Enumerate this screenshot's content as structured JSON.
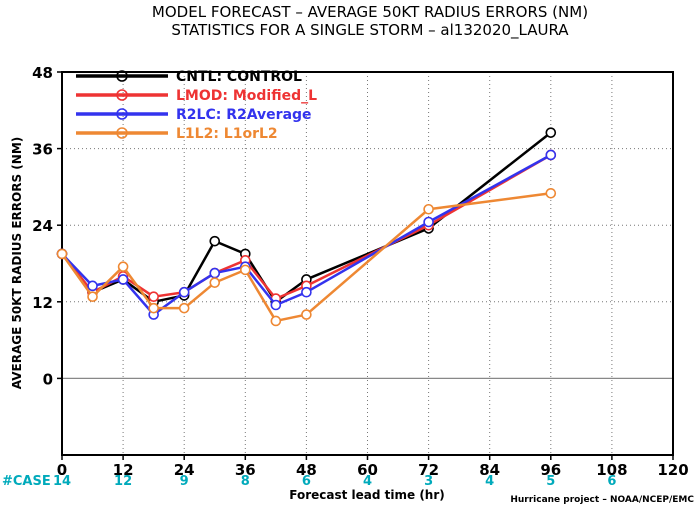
{
  "title_line1": "MODEL FORECAST – AVERAGE 50KT RADIUS ERRORS (NM)",
  "title_line2": "STATISTICS FOR A SINGLE STORM – al132020_LAURA",
  "credit": "Hurricane project – NOAA/NCEP/EMC",
  "case_label": "#CASE",
  "case_color": "#00aabb",
  "chart_data": {
    "type": "line",
    "xlabel": "Forecast lead time (hr)",
    "ylabel": "AVERAGE 50KT RADIUS ERRORS (NM)",
    "xlim": [
      0,
      120
    ],
    "ylim": [
      -12,
      48
    ],
    "x_ticks": [
      0,
      12,
      24,
      36,
      48,
      60,
      72,
      84,
      96,
      108,
      120
    ],
    "y_ticks": [
      0,
      12,
      24,
      36,
      48
    ],
    "case_counts": [
      {
        "x": 0,
        "n": "14"
      },
      {
        "x": 12,
        "n": "12"
      },
      {
        "x": 24,
        "n": "9"
      },
      {
        "x": 36,
        "n": "8"
      },
      {
        "x": 48,
        "n": "6"
      },
      {
        "x": 60,
        "n": "4"
      },
      {
        "x": 72,
        "n": "3"
      },
      {
        "x": 84,
        "n": "4"
      },
      {
        "x": 96,
        "n": "5"
      },
      {
        "x": 108,
        "n": "6"
      }
    ],
    "zero_line": true,
    "legend_position": "top-left",
    "series": [
      {
        "name": "CNTL: CONTROL",
        "color": "#000000",
        "x": [
          0,
          6,
          12,
          18,
          24,
          30,
          36,
          42,
          48,
          72,
          96
        ],
        "y": [
          19.5,
          13.5,
          15.5,
          12.0,
          13.0,
          21.5,
          19.5,
          12.0,
          15.5,
          23.5,
          38.5
        ]
      },
      {
        "name": "LMOD: Modified_L",
        "color": "#ee3333",
        "x": [
          0,
          6,
          12,
          18,
          24,
          30,
          36,
          42,
          48,
          72,
          96
        ],
        "y": [
          19.5,
          13.5,
          16.0,
          12.8,
          13.5,
          16.5,
          18.5,
          12.5,
          14.5,
          24.0,
          35.0
        ]
      },
      {
        "name": "R2LC: R2Average",
        "color": "#3333ee",
        "x": [
          0,
          6,
          12,
          18,
          24,
          30,
          36,
          42,
          48,
          72,
          96
        ],
        "y": [
          19.5,
          14.5,
          15.5,
          10.0,
          13.5,
          16.5,
          17.5,
          11.5,
          13.5,
          24.5,
          35.0
        ]
      },
      {
        "name": "L1L2: L1orL2",
        "color": "#ee8833",
        "x": [
          0,
          6,
          12,
          18,
          24,
          30,
          36,
          42,
          48,
          72,
          96
        ],
        "y": [
          19.5,
          12.8,
          17.5,
          11.0,
          11.0,
          15.0,
          17.0,
          9.0,
          10.0,
          26.5,
          29.0
        ]
      }
    ]
  }
}
